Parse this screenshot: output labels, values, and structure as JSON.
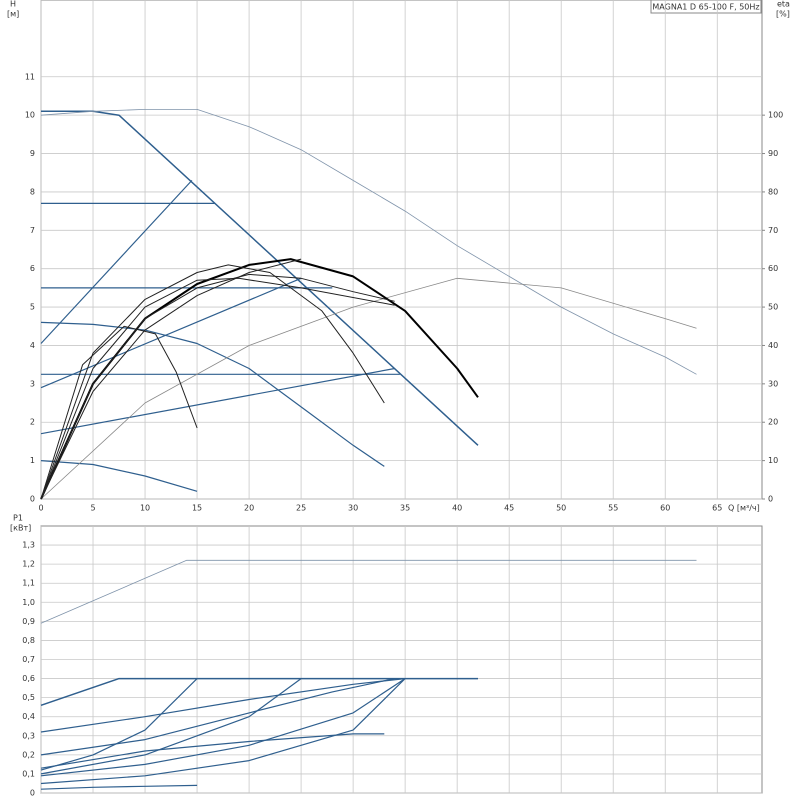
{
  "chart_data": [
    {
      "type": "line",
      "title": "MAGNA1 D 65-100 F, 50Hz",
      "ylabel": "H",
      "yunit": "[м]",
      "y2label": "eta",
      "y2unit": "[%]",
      "xlabel": "Q [м³/ч]",
      "xlim": [
        0,
        69.3
      ],
      "xticks": [
        0,
        5,
        10,
        15,
        20,
        25,
        30,
        35,
        40,
        45,
        50,
        55,
        60,
        65
      ],
      "ylim": [
        0,
        13
      ],
      "yticks": [
        0,
        1,
        2,
        3,
        4,
        5,
        6,
        7,
        8,
        9,
        10,
        11
      ],
      "y2lim": [
        0,
        130
      ],
      "y2ticks": [
        0,
        10,
        20,
        30,
        40,
        50,
        60,
        70,
        80,
        90,
        100
      ],
      "grid": true,
      "series": [
        {
          "color": "#2f5f8e",
          "line_width": 1.5,
          "x": [
            0,
            5,
            7.5,
            42
          ],
          "values": [
            10.1,
            10.1,
            10,
            1.4
          ]
        },
        {
          "color": "#2f5f8e",
          "line_width": 1.2,
          "x": [
            0,
            14.5
          ],
          "values": [
            4.05,
            8.3
          ]
        },
        {
          "color": "#2f5f8e",
          "line_width": 1.2,
          "x": [
            0,
            25
          ],
          "values": [
            2.9,
            5.75
          ]
        },
        {
          "color": "#2f5f8e",
          "line_width": 1.2,
          "x": [
            0,
            34
          ],
          "values": [
            1.7,
            3.4
          ]
        },
        {
          "color": "#2f5f8e",
          "line_width": 1.2,
          "x": [
            0,
            16.7
          ],
          "values": [
            7.7,
            7.7
          ]
        },
        {
          "color": "#2f5f8e",
          "line_width": 1.2,
          "x": [
            0,
            28
          ],
          "values": [
            5.5,
            5.5
          ]
        },
        {
          "color": "#2f5f8e",
          "line_width": 1.2,
          "x": [
            0,
            34.5
          ],
          "values": [
            3.25,
            3.25
          ]
        },
        {
          "color": "#2f5f8e",
          "line_width": 1.2,
          "x": [
            0,
            5,
            10,
            15,
            20,
            25,
            30,
            33
          ],
          "values": [
            4.6,
            4.55,
            4.4,
            4.05,
            3.4,
            2.4,
            1.4,
            0.85
          ]
        },
        {
          "color": "#2f5f8e",
          "line_width": 1.2,
          "x": [
            0,
            5,
            10,
            15
          ],
          "values": [
            1.0,
            0.9,
            0.6,
            0.2
          ]
        },
        {
          "color": "#7f93aa",
          "line_width": 0.8,
          "x": [
            0,
            5,
            10,
            15,
            20,
            25,
            30,
            35,
            40,
            45,
            50,
            55,
            60,
            63
          ],
          "values": [
            10,
            10.1,
            10.15,
            10.15,
            9.7,
            9.1,
            8.3,
            7.5,
            6.6,
            5.8,
            5,
            4.3,
            3.7,
            3.25
          ]
        },
        {
          "color": "#888888",
          "line_width": 0.8,
          "axis": "y2",
          "x": [
            0,
            10,
            20,
            30,
            40,
            50,
            60,
            63
          ],
          "values": [
            0,
            25,
            40,
            50,
            57.5,
            55,
            47,
            44.5
          ]
        },
        {
          "color": "#000000",
          "line_width": 2,
          "axis": "y2",
          "x": [
            0,
            5,
            10,
            15,
            20,
            24,
            30,
            35,
            40,
            42
          ],
          "values": [
            0,
            30,
            47,
            56,
            61,
            62.5,
            58,
            49,
            34,
            26.5
          ]
        },
        {
          "color": "#222222",
          "line_width": 1,
          "axis": "y2",
          "x": [
            0,
            5,
            10,
            15,
            18,
            22,
            27,
            30,
            33
          ],
          "values": [
            0,
            38,
            52,
            59,
            61,
            59,
            49,
            38,
            25
          ]
        },
        {
          "color": "#222222",
          "line_width": 1,
          "axis": "y2",
          "x": [
            0,
            4,
            8,
            11,
            13,
            15
          ],
          "values": [
            0,
            35,
            45,
            43,
            33,
            18.5
          ]
        },
        {
          "color": "#222222",
          "line_width": 1,
          "axis": "y2",
          "x": [
            0,
            5,
            10,
            15,
            20,
            25,
            30,
            34
          ],
          "values": [
            0,
            30,
            47,
            55,
            58.5,
            57.5,
            54,
            51.5
          ]
        },
        {
          "color": "#222222",
          "line_width": 1,
          "axis": "y2",
          "x": [
            0,
            5,
            10,
            15,
            19,
            25,
            34
          ],
          "values": [
            0,
            34,
            50,
            57,
            57.5,
            55,
            50.5
          ]
        },
        {
          "color": "#222222",
          "line_width": 1,
          "axis": "y2",
          "x": [
            0,
            5,
            10,
            15,
            20,
            25
          ],
          "values": [
            0,
            28,
            44,
            53,
            59,
            62.5
          ]
        }
      ]
    },
    {
      "type": "line",
      "ylabel": "P1",
      "yunit": "[кВт]",
      "xlim": [
        0,
        69.3
      ],
      "xticks": [
        0,
        5,
        10,
        15,
        20,
        25,
        30,
        35,
        40,
        45,
        50,
        55,
        60,
        65
      ],
      "ylim": [
        0,
        1.4
      ],
      "yticks": [
        0,
        {
          "value": 0.1,
          "label": "0,1"
        },
        {
          "value": 0.2,
          "label": "0,2"
        },
        {
          "value": 0.3,
          "label": "0,3"
        },
        {
          "value": 0.4,
          "label": "0,4"
        },
        {
          "value": 0.5,
          "label": "0,5"
        },
        {
          "value": 0.6,
          "label": "0,6"
        },
        {
          "value": 0.7,
          "label": "0,7"
        },
        {
          "value": 0.8,
          "label": "0,8"
        },
        {
          "value": 0.9,
          "label": "0,9"
        },
        {
          "value": 1.0,
          "label": "1,0"
        },
        {
          "value": 1.1,
          "label": "1,1"
        },
        {
          "value": 1.2,
          "label": "1,2"
        },
        {
          "value": 1.3,
          "label": "1,3"
        }
      ],
      "grid": true,
      "series": [
        {
          "color": "#7f93aa",
          "line_width": 0.8,
          "x": [
            0,
            14,
            63
          ],
          "values": [
            0.89,
            1.22,
            1.22
          ]
        },
        {
          "color": "#2f5f8e",
          "line_width": 1.5,
          "x": [
            0,
            7.5,
            42
          ],
          "values": [
            0.46,
            0.6,
            0.6
          ]
        },
        {
          "color": "#2f5f8e",
          "line_width": 1.2,
          "x": [
            0,
            10,
            20,
            30,
            35
          ],
          "values": [
            0.32,
            0.4,
            0.49,
            0.57,
            0.6
          ]
        },
        {
          "color": "#2f5f8e",
          "line_width": 1.2,
          "x": [
            0,
            10,
            20,
            28,
            34
          ],
          "values": [
            0.2,
            0.28,
            0.42,
            0.53,
            0.6
          ]
        },
        {
          "color": "#2f5f8e",
          "line_width": 1.2,
          "x": [
            0,
            5,
            10,
            15
          ],
          "values": [
            0.12,
            0.2,
            0.33,
            0.6
          ]
        },
        {
          "color": "#2f5f8e",
          "line_width": 1.2,
          "x": [
            0,
            10,
            20,
            25
          ],
          "values": [
            0.1,
            0.2,
            0.4,
            0.6
          ]
        },
        {
          "color": "#2f5f8e",
          "line_width": 1.2,
          "x": [
            0,
            10,
            20,
            30,
            35
          ],
          "values": [
            0.09,
            0.15,
            0.25,
            0.42,
            0.6
          ]
        },
        {
          "color": "#2f5f8e",
          "line_width": 1.2,
          "x": [
            0,
            10,
            20,
            30,
            33
          ],
          "values": [
            0.13,
            0.22,
            0.27,
            0.31,
            0.31
          ]
        },
        {
          "color": "#2f5f8e",
          "line_width": 1.2,
          "x": [
            0,
            10,
            20,
            30,
            35
          ],
          "values": [
            0.05,
            0.09,
            0.17,
            0.33,
            0.6
          ]
        },
        {
          "color": "#2f5f8e",
          "line_width": 1.2,
          "x": [
            0,
            5,
            10,
            15
          ],
          "values": [
            0.02,
            0.03,
            0.035,
            0.04
          ]
        }
      ]
    }
  ]
}
